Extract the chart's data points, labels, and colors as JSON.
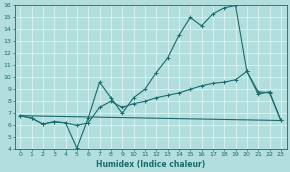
{
  "xlabel": "Humidex (Indice chaleur)",
  "xlim": [
    -0.5,
    23.5
  ],
  "ylim": [
    4,
    16
  ],
  "xticks": [
    0,
    1,
    2,
    3,
    4,
    5,
    6,
    7,
    8,
    9,
    10,
    11,
    12,
    13,
    14,
    15,
    16,
    17,
    18,
    19,
    20,
    21,
    22,
    23
  ],
  "yticks": [
    4,
    5,
    6,
    7,
    8,
    9,
    10,
    11,
    12,
    13,
    14,
    15,
    16
  ],
  "background_color": "#b2dede",
  "grid_color": "#c8e8e8",
  "line_color": "#1a6b6b",
  "series": [
    {
      "x": [
        0,
        1,
        2,
        3,
        4,
        5,
        6,
        7,
        8,
        9,
        10,
        11,
        12,
        13,
        14,
        15,
        16,
        17,
        18,
        19,
        20,
        21,
        22,
        23
      ],
      "y": [
        6.8,
        6.6,
        6.1,
        6.3,
        6.2,
        4.1,
        6.6,
        9.6,
        8.3,
        7.0,
        8.3,
        9.0,
        10.4,
        11.6,
        13.5,
        15.0,
        14.3,
        15.3,
        15.8,
        16.0,
        10.5,
        8.6,
        8.8,
        6.4
      ],
      "marker": true
    },
    {
      "x": [
        0,
        1,
        2,
        3,
        4,
        5,
        6,
        7,
        8,
        9,
        10,
        11,
        12,
        13,
        14,
        15,
        16,
        17,
        18,
        19,
        20,
        21,
        22,
        23
      ],
      "y": [
        6.8,
        6.6,
        6.1,
        6.3,
        6.2,
        6.0,
        6.2,
        7.5,
        8.0,
        7.5,
        7.8,
        8.0,
        8.3,
        8.5,
        8.7,
        9.0,
        9.3,
        9.5,
        9.6,
        9.8,
        10.5,
        8.8,
        8.7,
        6.4
      ],
      "marker": true
    },
    {
      "x": [
        0,
        23
      ],
      "y": [
        6.8,
        6.4
      ],
      "marker": false
    }
  ]
}
